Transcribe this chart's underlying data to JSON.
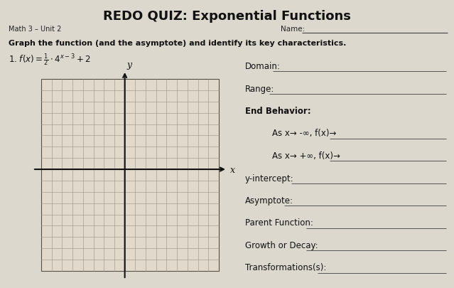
{
  "title": "REDO QUIZ: Exponential Functions",
  "subtitle": "Math 3 – Unit 2",
  "name_label": "Name:",
  "instruction": "Graph the function (and the asymptote) and identify its key characteristics.",
  "function_display": "1. $f(x) = \\frac{1}{2} \\cdot 4^{x-3} + 2$",
  "paper_color": "#ddd8ce",
  "grid_bg": "#e0d9cc",
  "grid_line_color": "#9a9080",
  "grid_border_color": "#555045",
  "axis_color": "#111111",
  "n_grid": 17,
  "right_fields": [
    {
      "label": "Domain:",
      "bold": false,
      "indent": 0,
      "has_line": true
    },
    {
      "label": "Range:",
      "bold": false,
      "indent": 0,
      "has_line": true
    },
    {
      "label": "End Behavior:",
      "bold": true,
      "indent": 0,
      "has_line": false
    },
    {
      "label": "As x→ -∞, f(x)→",
      "bold": false,
      "indent": 0.06,
      "has_line": true
    },
    {
      "label": "As x→ +∞, f(x)→",
      "bold": false,
      "indent": 0.06,
      "has_line": true
    },
    {
      "label": "y-intercept:",
      "bold": false,
      "indent": 0,
      "has_line": true
    },
    {
      "label": "Asymptote:",
      "bold": false,
      "indent": 0,
      "has_line": true
    },
    {
      "label": "Parent Function:",
      "bold": false,
      "indent": 0,
      "has_line": true
    },
    {
      "label": "Growth or Decay:",
      "bold": false,
      "indent": 0,
      "has_line": true
    },
    {
      "label": "Transformations(s):",
      "bold": false,
      "indent": 0,
      "has_line": true
    }
  ]
}
